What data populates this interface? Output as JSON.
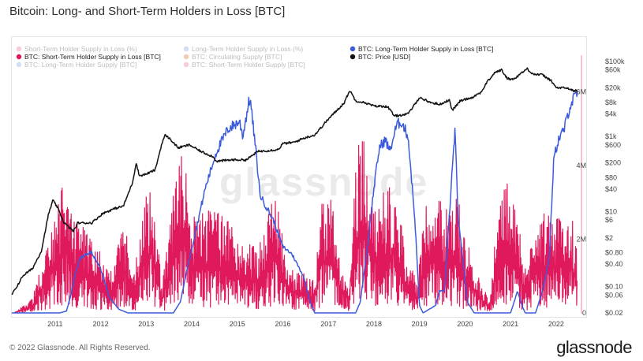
{
  "header": {
    "title": "Bitcoin: Long- and Short-Term Holders in Loss [BTC]"
  },
  "footer": {
    "copyright": "© 2022 Glassnode. All Rights Reserved.",
    "logo": "glassnode"
  },
  "watermark": "glassnode",
  "chart_data": {
    "type": "line",
    "title": "Bitcoin: Long- and Short-Term Holders in Loss [BTC]",
    "x_ticks": [
      "2011",
      "2012",
      "2013",
      "2014",
      "2015",
      "2016",
      "2017",
      "2018",
      "2019",
      "2020",
      "2021",
      "2022"
    ],
    "y_right_inner": {
      "scale": "linear",
      "range": [
        0,
        7000000
      ],
      "ticks": [
        "0",
        "2M",
        "4M",
        "6M"
      ]
    },
    "y_right_outer": {
      "scale": "log",
      "range": [
        0.02,
        100000
      ],
      "ticks": [
        "$100k",
        "$60k",
        "$20k",
        "$8k",
        "$4k",
        "$1k",
        "$600",
        "$200",
        "$80",
        "$40",
        "$10",
        "$6",
        "$2",
        "$0.80",
        "$0.40",
        "$0.10",
        "$0.06",
        "$0.02"
      ]
    },
    "legend": [
      {
        "label": "Short-Term Holder Supply in Loss (%)",
        "color": "#f0a3b5",
        "active": false
      },
      {
        "label": "Long-Term Holder Supply in Loss (%)",
        "color": "#a9c4f0",
        "active": false
      },
      {
        "label": "BTC: Long-Term Holder Supply in Loss [BTC]",
        "color": "#3b5bdb",
        "active": true
      },
      {
        "label": "BTC: Short-Term Holder Supply in Loss [BTC]",
        "color": "#e0185c",
        "active": true
      },
      {
        "label": "BTC: Circulating Supply [BTC]",
        "color": "#e8a070",
        "active": false
      },
      {
        "label": "BTC: Price [USD]",
        "color": "#111111",
        "active": true
      },
      {
        "label": "BTC: Long-Term Holder Supply [BTC]",
        "color": "#a9c4f0",
        "active": false
      },
      {
        "label": "BTC: Short-Term Holder Supply [BTC]",
        "color": "#f0a3b5",
        "active": false
      }
    ],
    "series": [
      {
        "name": "BTC: Price [USD]",
        "axis": "price",
        "color": "#111111",
        "points": [
          [
            2010.55,
            0.06
          ],
          [
            2010.8,
            0.2
          ],
          [
            2011.0,
            0.3
          ],
          [
            2011.2,
            0.9
          ],
          [
            2011.35,
            8
          ],
          [
            2011.45,
            20
          ],
          [
            2011.55,
            13
          ],
          [
            2011.7,
            5
          ],
          [
            2011.9,
            3
          ],
          [
            2012.0,
            5
          ],
          [
            2012.3,
            5
          ],
          [
            2012.55,
            9
          ],
          [
            2012.8,
            12
          ],
          [
            2013.0,
            14
          ],
          [
            2013.2,
            60
          ],
          [
            2013.28,
            200
          ],
          [
            2013.35,
            90
          ],
          [
            2013.5,
            100
          ],
          [
            2013.7,
            130
          ],
          [
            2013.85,
            700
          ],
          [
            2013.92,
            1100
          ],
          [
            2014.05,
            800
          ],
          [
            2014.2,
            500
          ],
          [
            2014.45,
            600
          ],
          [
            2014.7,
            400
          ],
          [
            2014.95,
            300
          ],
          [
            2015.05,
            220
          ],
          [
            2015.4,
            240
          ],
          [
            2015.7,
            240
          ],
          [
            2015.95,
            400
          ],
          [
            2016.4,
            450
          ],
          [
            2016.5,
            650
          ],
          [
            2016.75,
            700
          ],
          [
            2016.95,
            900
          ],
          [
            2017.2,
            1100
          ],
          [
            2017.45,
            2500
          ],
          [
            2017.65,
            4500
          ],
          [
            2017.85,
            8000
          ],
          [
            2017.97,
            17000
          ],
          [
            2018.1,
            9000
          ],
          [
            2018.3,
            8000
          ],
          [
            2018.5,
            6500
          ],
          [
            2018.8,
            6300
          ],
          [
            2018.95,
            3500
          ],
          [
            2019.25,
            4000
          ],
          [
            2019.5,
            11000
          ],
          [
            2019.75,
            8000
          ],
          [
            2019.95,
            7200
          ],
          [
            2020.15,
            9500
          ],
          [
            2020.22,
            5000
          ],
          [
            2020.4,
            9000
          ],
          [
            2020.65,
            11000
          ],
          [
            2020.85,
            15000
          ],
          [
            2020.99,
            29000
          ],
          [
            2021.15,
            50000
          ],
          [
            2021.3,
            60000
          ],
          [
            2021.42,
            36000
          ],
          [
            2021.55,
            33000
          ],
          [
            2021.7,
            45000
          ],
          [
            2021.86,
            64000
          ],
          [
            2022.0,
            46000
          ],
          [
            2022.2,
            44000
          ],
          [
            2022.4,
            30000
          ],
          [
            2022.5,
            20000
          ],
          [
            2022.75,
            19500
          ],
          [
            2022.88,
            16500
          ],
          [
            2022.96,
            16800
          ]
        ]
      },
      {
        "name": "BTC: Long-Term Holder Supply in Loss [BTC]",
        "axis": "supply",
        "color": "#3b5bdb",
        "points": [
          [
            2010.55,
            0
          ],
          [
            2011.6,
            0
          ],
          [
            2011.75,
            50000
          ],
          [
            2011.85,
            500000
          ],
          [
            2011.95,
            1100000
          ],
          [
            2012.05,
            1500000
          ],
          [
            2012.3,
            1650000
          ],
          [
            2012.5,
            1200000
          ],
          [
            2012.7,
            400000
          ],
          [
            2012.9,
            100000
          ],
          [
            2013.1,
            0
          ],
          [
            2014.1,
            0
          ],
          [
            2014.25,
            300000
          ],
          [
            2014.4,
            1200000
          ],
          [
            2014.6,
            2300000
          ],
          [
            2014.8,
            3400000
          ],
          [
            2015.05,
            4400000
          ],
          [
            2015.3,
            5000000
          ],
          [
            2015.55,
            5200000
          ],
          [
            2015.62,
            4800000
          ],
          [
            2015.72,
            5500000
          ],
          [
            2015.78,
            5850000
          ],
          [
            2015.9,
            4500000
          ],
          [
            2016.0,
            3200000
          ],
          [
            2016.3,
            2500000
          ],
          [
            2016.5,
            1800000
          ],
          [
            2016.7,
            1600000
          ],
          [
            2016.95,
            1000000
          ],
          [
            2017.1,
            300000
          ],
          [
            2017.2,
            0
          ],
          [
            2018.1,
            0
          ],
          [
            2018.2,
            300000
          ],
          [
            2018.35,
            1700000
          ],
          [
            2018.5,
            3400000
          ],
          [
            2018.62,
            4500000
          ],
          [
            2018.75,
            4700000
          ],
          [
            2018.85,
            4400000
          ],
          [
            2019.0,
            5100000
          ],
          [
            2019.1,
            5200000
          ],
          [
            2019.25,
            4800000
          ],
          [
            2019.4,
            2500000
          ],
          [
            2019.5,
            200000
          ],
          [
            2019.58,
            0
          ],
          [
            2019.85,
            200000
          ],
          [
            2019.95,
            600000
          ],
          [
            2020.05,
            600000
          ],
          [
            2020.2,
            3500000
          ],
          [
            2020.28,
            5000000
          ],
          [
            2020.35,
            2500000
          ],
          [
            2020.45,
            1500000
          ],
          [
            2020.55,
            300000
          ],
          [
            2020.7,
            0
          ],
          [
            2021.5,
            0
          ],
          [
            2021.58,
            300000
          ],
          [
            2021.65,
            600000
          ],
          [
            2021.75,
            200000
          ],
          [
            2021.82,
            0
          ],
          [
            2022.05,
            0
          ],
          [
            2022.2,
            600000
          ],
          [
            2022.35,
            1500000
          ],
          [
            2022.45,
            4200000
          ],
          [
            2022.55,
            4700000
          ],
          [
            2022.68,
            5000000
          ],
          [
            2022.8,
            5600000
          ],
          [
            2022.9,
            5850000
          ],
          [
            2022.96,
            5950000
          ]
        ]
      },
      {
        "name": "BTC: Short-Term Holder Supply in Loss [BTC]",
        "axis": "supply",
        "color": "#e0185c",
        "envelope": [
          [
            2010.6,
            0
          ],
          [
            2011.0,
            400000
          ],
          [
            2011.4,
            2300000
          ],
          [
            2011.7,
            3700000
          ],
          [
            2011.95,
            2700000
          ],
          [
            2012.2,
            2300000
          ],
          [
            2012.5,
            1800000
          ],
          [
            2012.7,
            1000000
          ],
          [
            2012.85,
            1900000
          ],
          [
            2013.05,
            2400000
          ],
          [
            2013.2,
            800000
          ],
          [
            2013.45,
            3000000
          ],
          [
            2013.6,
            3700000
          ],
          [
            2013.85,
            800000
          ],
          [
            2014.1,
            3300000
          ],
          [
            2014.3,
            4400000
          ],
          [
            2014.55,
            2700000
          ],
          [
            2014.9,
            2900000
          ],
          [
            2015.1,
            2700000
          ],
          [
            2015.4,
            2600000
          ],
          [
            2015.6,
            1900000
          ],
          [
            2015.85,
            2000000
          ],
          [
            2016.05,
            1900000
          ],
          [
            2016.3,
            3400000
          ],
          [
            2016.5,
            2200000
          ],
          [
            2016.7,
            1300000
          ],
          [
            2016.95,
            1100000
          ],
          [
            2017.2,
            900000
          ],
          [
            2017.35,
            3000000
          ],
          [
            2017.55,
            3200000
          ],
          [
            2017.75,
            1600000
          ],
          [
            2017.95,
            800000
          ],
          [
            2018.05,
            3700000
          ],
          [
            2018.25,
            5200000
          ],
          [
            2018.45,
            3100000
          ],
          [
            2018.65,
            3200000
          ],
          [
            2018.95,
            3600000
          ],
          [
            2019.2,
            1600000
          ],
          [
            2019.45,
            900000
          ],
          [
            2019.65,
            3300000
          ],
          [
            2019.9,
            3100000
          ],
          [
            2020.15,
            2800000
          ],
          [
            2020.35,
            3200000
          ],
          [
            2020.5,
            2100000
          ],
          [
            2020.7,
            1400000
          ],
          [
            2020.9,
            700000
          ],
          [
            2021.05,
            300000
          ],
          [
            2021.15,
            2000000
          ],
          [
            2021.32,
            3800000
          ],
          [
            2021.5,
            3400000
          ],
          [
            2021.7,
            2200000
          ],
          [
            2021.85,
            1200000
          ],
          [
            2021.95,
            2300000
          ],
          [
            2022.1,
            2500000
          ],
          [
            2022.3,
            2800000
          ],
          [
            2022.5,
            2800000
          ],
          [
            2022.7,
            2700000
          ],
          [
            2022.85,
            2600000
          ],
          [
            2022.96,
            1800000
          ]
        ]
      }
    ]
  }
}
